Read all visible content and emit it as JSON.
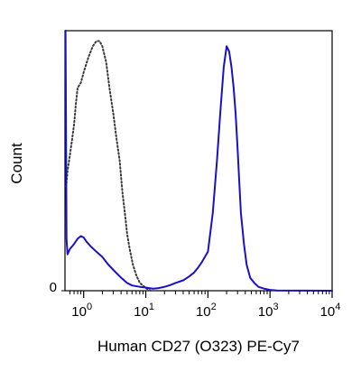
{
  "chart_data": {
    "type": "line",
    "xlabel": "Human CD27 (O323) PE-Cy7",
    "ylabel": "Count",
    "x_scale": "log",
    "xlim": [
      0.5,
      10000
    ],
    "ylim": [
      0,
      100
    ],
    "x_ticks": [
      {
        "value": 1,
        "base": "10",
        "exp": "0"
      },
      {
        "value": 10,
        "base": "10",
        "exp": "1"
      },
      {
        "value": 100,
        "base": "10",
        "exp": "2"
      },
      {
        "value": 1000,
        "base": "10",
        "exp": "3"
      },
      {
        "value": 10000,
        "base": "10",
        "exp": "4"
      }
    ],
    "y_ticks": [
      {
        "value": 0,
        "label": "0"
      }
    ],
    "grid": false,
    "series": [
      {
        "style": "dotted",
        "color": "#3a3a3a",
        "points": [
          [
            0.52,
            40
          ],
          [
            0.55,
            46
          ],
          [
            0.6,
            52
          ],
          [
            0.65,
            58
          ],
          [
            0.7,
            64
          ],
          [
            0.75,
            72
          ],
          [
            0.8,
            78
          ],
          [
            0.9,
            80
          ],
          [
            1.0,
            84
          ],
          [
            1.2,
            90
          ],
          [
            1.4,
            94
          ],
          [
            1.6,
            96
          ],
          [
            1.8,
            96
          ],
          [
            2.0,
            94
          ],
          [
            2.3,
            88
          ],
          [
            2.6,
            78
          ],
          [
            3.0,
            68
          ],
          [
            3.4,
            58
          ],
          [
            3.8,
            50
          ],
          [
            4.2,
            38
          ],
          [
            4.6,
            30
          ],
          [
            5.0,
            22
          ],
          [
            5.5,
            16
          ],
          [
            6.2,
            10
          ],
          [
            7.0,
            6
          ],
          [
            8.0,
            3
          ],
          [
            9.0,
            2
          ],
          [
            10.0,
            1
          ],
          [
            11.0,
            0.5
          ],
          [
            12.0,
            0
          ]
        ]
      },
      {
        "style": "solid",
        "color": "#1a10c8",
        "points": [
          [
            0.51,
            100
          ],
          [
            0.52,
            60
          ],
          [
            0.53,
            20
          ],
          [
            0.55,
            14
          ],
          [
            0.6,
            16
          ],
          [
            0.65,
            17
          ],
          [
            0.7,
            18
          ],
          [
            0.8,
            20
          ],
          [
            0.9,
            21
          ],
          [
            1.0,
            20.5
          ],
          [
            1.1,
            19
          ],
          [
            1.3,
            17
          ],
          [
            1.6,
            15
          ],
          [
            2.0,
            13
          ],
          [
            2.5,
            10
          ],
          [
            3.0,
            8
          ],
          [
            4.0,
            5
          ],
          [
            5.0,
            3
          ],
          [
            6.0,
            2
          ],
          [
            8.0,
            1.5
          ],
          [
            10.0,
            1.2
          ],
          [
            13.0,
            0.8
          ],
          [
            16.0,
            1
          ],
          [
            20.0,
            1.5
          ],
          [
            25.0,
            2.2
          ],
          [
            30.0,
            3
          ],
          [
            40.0,
            4
          ],
          [
            50.0,
            5.5
          ],
          [
            60.0,
            7
          ],
          [
            70.0,
            9
          ],
          [
            80.0,
            11
          ],
          [
            100.0,
            15
          ],
          [
            120.0,
            30
          ],
          [
            140.0,
            50
          ],
          [
            160.0,
            70
          ],
          [
            180.0,
            86
          ],
          [
            200.0,
            94
          ],
          [
            220.0,
            92
          ],
          [
            240.0,
            86
          ],
          [
            260.0,
            78
          ],
          [
            280.0,
            68
          ],
          [
            300.0,
            55
          ],
          [
            320.0,
            42
          ],
          [
            340.0,
            30
          ],
          [
            380.0,
            18
          ],
          [
            420.0,
            10
          ],
          [
            480.0,
            5
          ],
          [
            560.0,
            3
          ],
          [
            650.0,
            1.5
          ],
          [
            800.0,
            0.8
          ],
          [
            1000.0,
            0.3
          ],
          [
            1300.0,
            0.1
          ],
          [
            10000.0,
            0
          ]
        ]
      }
    ]
  }
}
